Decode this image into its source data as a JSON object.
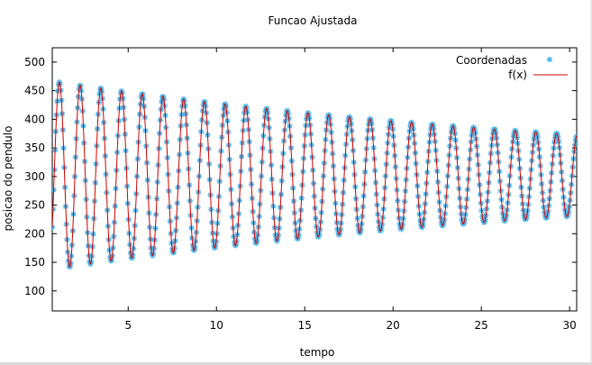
{
  "chart_data": {
    "type": "scatter",
    "title": "Funcao Ajustada",
    "xlabel": "tempo",
    "ylabel": "posicao do pendulo",
    "xlim": [
      0.7,
      30.4
    ],
    "ylim": [
      65,
      525
    ],
    "xticks": [
      5,
      10,
      15,
      20,
      25,
      30
    ],
    "yticks": [
      100,
      150,
      200,
      250,
      300,
      350,
      400,
      450,
      500
    ],
    "grid": false,
    "legend_position": "top-right",
    "series": [
      {
        "name": "Coordenadas",
        "kind": "points",
        "marker": "asterisk",
        "color": "#4fb3e8",
        "sample_step": 0.04
      },
      {
        "name": "f(x)",
        "kind": "line",
        "color": "#cc0000",
        "model": {
          "form": "A*exp(-b*x)*cos(w*x+phi)+C+d*x",
          "A": 168,
          "b": 0.0284,
          "w": 5.355,
          "phi": 0.38,
          "C": 302,
          "d": 0.0
        }
      }
    ]
  }
}
